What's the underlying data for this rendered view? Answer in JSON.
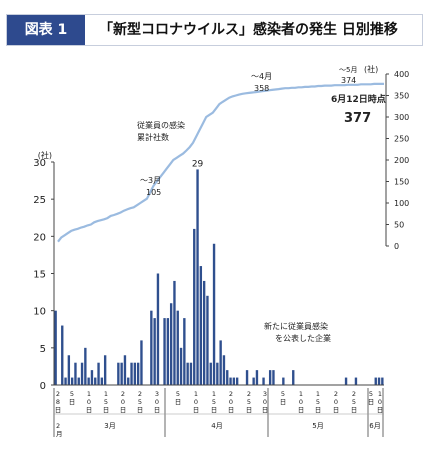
{
  "header": {
    "badge": "図表 1",
    "title": "「新型コロナウイルス」感染者の発生 日別推移"
  },
  "chart_data": {
    "type": "bar+line",
    "left_axis": {
      "unit": "(社)",
      "ylim": [
        0,
        30
      ],
      "ticks": [
        0,
        5,
        10,
        15,
        20,
        25,
        30
      ]
    },
    "right_axis": {
      "unit": "(社)",
      "ylim": [
        0,
        400
      ],
      "ticks": [
        0,
        50,
        100,
        150,
        200,
        250,
        300,
        350,
        400
      ]
    },
    "bar_series": {
      "name": "新たに従業員感染を公表した企業",
      "values": [
        10,
        0,
        8,
        1,
        4,
        1,
        3,
        1,
        3,
        5,
        1,
        2,
        1,
        3,
        1,
        4,
        0,
        0,
        0,
        3,
        3,
        4,
        1,
        3,
        3,
        3,
        6,
        0,
        0,
        10,
        9,
        15,
        0,
        9,
        9,
        11,
        14,
        10,
        5,
        9,
        3,
        3,
        21,
        29,
        16,
        14,
        12,
        3,
        19,
        3,
        6,
        4,
        2,
        1,
        1,
        1,
        0,
        0,
        2,
        0,
        1,
        2,
        0,
        1,
        0,
        2,
        2,
        0,
        0,
        1,
        0,
        0,
        2,
        0,
        0,
        0,
        0,
        0,
        0,
        0,
        0,
        0,
        0,
        0,
        0,
        0,
        0,
        0,
        1,
        0,
        0,
        1,
        0,
        0,
        0,
        0,
        0,
        1,
        1,
        1
      ],
      "label_peak": "29"
    },
    "line_series": {
      "name": "従業員の感染\n累計社数",
      "values": [
        10,
        20,
        25,
        30,
        35,
        38,
        40,
        43,
        45,
        48,
        50,
        55,
        58,
        60,
        62,
        65,
        70,
        72,
        75,
        78,
        82,
        85,
        88,
        90,
        95,
        100,
        105,
        110,
        125,
        140,
        150,
        160,
        170,
        180,
        190,
        200,
        205,
        210,
        215,
        222,
        230,
        240,
        255,
        270,
        285,
        300,
        305,
        310,
        320,
        330,
        335,
        340,
        345,
        348,
        350,
        352,
        354,
        355,
        356,
        357,
        358,
        359,
        360,
        361,
        362,
        363,
        364,
        365,
        366,
        367,
        367,
        368,
        368,
        369,
        369,
        370,
        370,
        371,
        371,
        372,
        372,
        373,
        373,
        373,
        374,
        374,
        374,
        374,
        375,
        375,
        375,
        375,
        376,
        376,
        376,
        376,
        377,
        377,
        377,
        377
      ],
      "annotations": [
        {
          "label": "～3月",
          "value": "105"
        },
        {
          "label": "～4月",
          "value": "358"
        },
        {
          "label": "～5月",
          "value": "374"
        }
      ],
      "final_label": "6月12日時点",
      "final_value": "377"
    },
    "x_axis": {
      "day_labels": [
        "28",
        "5",
        "10",
        "15",
        "20",
        "25",
        "30",
        "5",
        "10",
        "15",
        "20",
        "25",
        "30",
        "5",
        "10",
        "15",
        "20",
        "25",
        "5",
        "10"
      ],
      "day_unit": "日",
      "months": [
        "2月",
        "3月",
        "4月",
        "5月",
        "6月"
      ]
    }
  }
}
